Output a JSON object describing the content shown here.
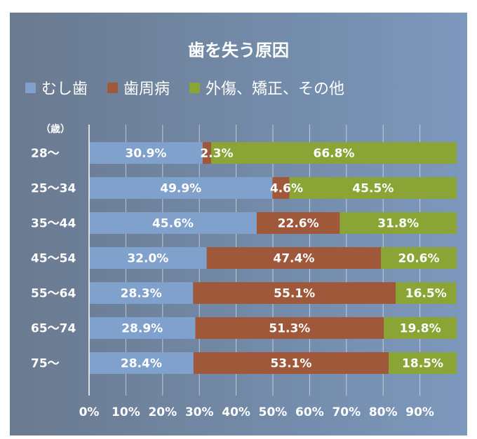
{
  "chart_data": {
    "type": "bar",
    "orientation": "horizontal",
    "stacked": true,
    "title": "歯を失う原因",
    "unit_label": "（歳）",
    "categories": [
      "28〜",
      "25〜34",
      "35〜44",
      "45〜54",
      "55〜64",
      "65〜74",
      "75〜"
    ],
    "series": [
      {
        "name": "むし歯",
        "color": "#7fa1cb",
        "values": [
          30.9,
          49.9,
          45.6,
          32.0,
          28.3,
          28.9,
          28.4
        ],
        "labels": [
          "30.9%",
          "49.9%",
          "45.6%",
          "32.0%",
          "28.3%",
          "28.9%",
          "28.4%"
        ]
      },
      {
        "name": "歯周病",
        "color": "#a0583a",
        "values": [
          2.3,
          4.6,
          22.6,
          47.4,
          55.1,
          51.3,
          53.1
        ],
        "labels": [
          "2.3%",
          "4.6%",
          "22.6%",
          "47.4%",
          "55.1%",
          "51.3%",
          "53.1%"
        ]
      },
      {
        "name": "外傷、矯正、その他",
        "color": "#8aa536",
        "values": [
          66.8,
          45.5,
          31.8,
          20.6,
          16.5,
          19.8,
          18.5
        ],
        "labels": [
          "66.8%",
          "45.5%",
          "31.8%",
          "20.6%",
          "16.5%",
          "19.8%",
          "18.5%"
        ]
      }
    ],
    "xlim": [
      0,
      100
    ],
    "x_ticks": [
      "0%",
      "10%",
      "20%",
      "30%",
      "40%",
      "50%",
      "60%",
      "70%",
      "80%",
      "90%"
    ],
    "grid": true,
    "legend_position": "top-left"
  }
}
